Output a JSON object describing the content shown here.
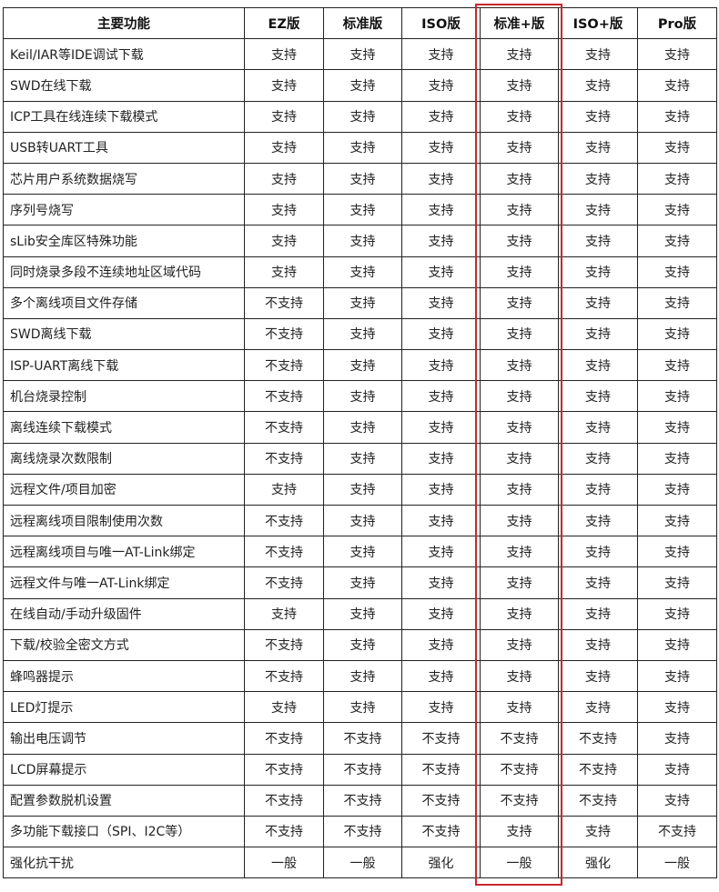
{
  "headers": [
    "主要功能",
    "EZ版",
    "标准版",
    "ISO版",
    "标准+版",
    "ISO+版",
    "Pro版"
  ],
  "highlight_color": "#c8272e",
  "highlighted_column": "标准+版",
  "rows": [
    [
      "Keil/IAR等IDE调试下载",
      "支持",
      "支持",
      "支持",
      "支持",
      "支持",
      "支持"
    ],
    [
      "SWD在线下载",
      "支持",
      "支持",
      "支持",
      "支持",
      "支持",
      "支持"
    ],
    [
      "ICP工具在线连续下载模式",
      "支持",
      "支持",
      "支持",
      "支持",
      "支持",
      "支持"
    ],
    [
      "USB转UART工具",
      "支持",
      "支持",
      "支持",
      "支持",
      "支持",
      "支持"
    ],
    [
      "芯片用户系统数据烧写",
      "支持",
      "支持",
      "支持",
      "支持",
      "支持",
      "支持"
    ],
    [
      "序列号烧写",
      "支持",
      "支持",
      "支持",
      "支持",
      "支持",
      "支持"
    ],
    [
      "sLib安全库区特殊功能",
      "支持",
      "支持",
      "支持",
      "支持",
      "支持",
      "支持"
    ],
    [
      "同时烧录多段不连续地址区域代码",
      "支持",
      "支持",
      "支持",
      "支持",
      "支持",
      "支持"
    ],
    [
      "多个离线项目文件存储",
      "不支持",
      "支持",
      "支持",
      "支持",
      "支持",
      "支持"
    ],
    [
      "SWD离线下载",
      "不支持",
      "支持",
      "支持",
      "支持",
      "支持",
      "支持"
    ],
    [
      "ISP-UART离线下载",
      "不支持",
      "支持",
      "支持",
      "支持",
      "支持",
      "支持"
    ],
    [
      "机台烧录控制",
      "不支持",
      "支持",
      "支持",
      "支持",
      "支持",
      "支持"
    ],
    [
      "离线连续下载模式",
      "不支持",
      "支持",
      "支持",
      "支持",
      "支持",
      "支持"
    ],
    [
      "离线烧录次数限制",
      "不支持",
      "支持",
      "支持",
      "支持",
      "支持",
      "支持"
    ],
    [
      "远程文件/项目加密",
      "支持",
      "支持",
      "支持",
      "支持",
      "支持",
      "支持"
    ],
    [
      "远程离线项目限制使用次数",
      "不支持",
      "支持",
      "支持",
      "支持",
      "支持",
      "支持"
    ],
    [
      "远程离线项目与唯一AT-Link绑定",
      "不支持",
      "支持",
      "支持",
      "支持",
      "支持",
      "支持"
    ],
    [
      "远程文件与唯一AT-Link绑定",
      "不支持",
      "支持",
      "支持",
      "支持",
      "支持",
      "支持"
    ],
    [
      "在线自动/手动升级固件",
      "支持",
      "支持",
      "支持",
      "支持",
      "支持",
      "支持"
    ],
    [
      "下载/校验全密文方式",
      "不支持",
      "支持",
      "支持",
      "支持",
      "支持",
      "支持"
    ],
    [
      "蜂鸣器提示",
      "不支持",
      "支持",
      "支持",
      "支持",
      "支持",
      "支持"
    ],
    [
      "LED灯提示",
      "支持",
      "支持",
      "支持",
      "支持",
      "支持",
      "支持"
    ],
    [
      "输出电压调节",
      "不支持",
      "不支持",
      "不支持",
      "不支持",
      "不支持",
      "支持"
    ],
    [
      "LCD屏幕提示",
      "不支持",
      "不支持",
      "不支持",
      "不支持",
      "不支持",
      "支持"
    ],
    [
      "配置参数脱机设置",
      "不支持",
      "不支持",
      "不支持",
      "不支持",
      "不支持",
      "支持"
    ],
    [
      "多功能下载接口（SPI、I2C等）",
      "不支持",
      "不支持",
      "不支持",
      "支持",
      "支持",
      "不支持"
    ],
    [
      "强化抗干扰",
      "一般",
      "一般",
      "强化",
      "一般",
      "强化",
      "一般"
    ]
  ]
}
